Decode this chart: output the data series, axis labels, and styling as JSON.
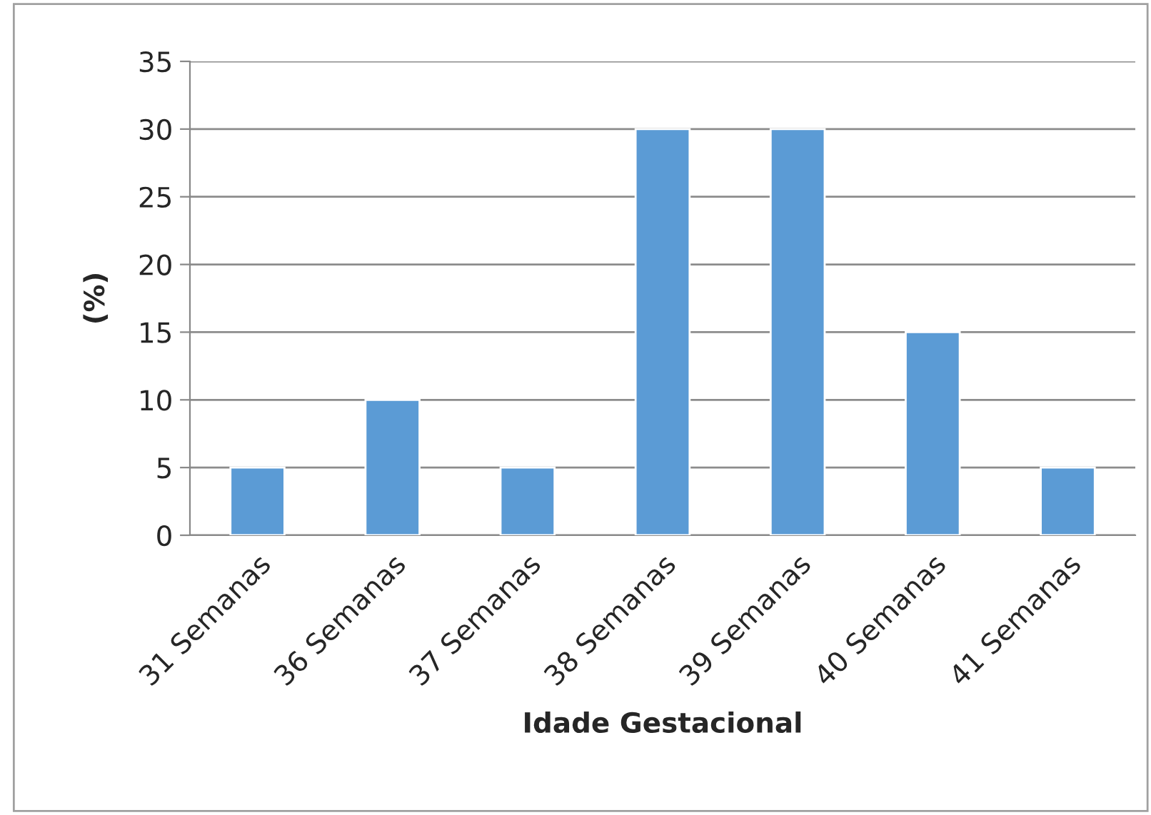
{
  "chart_data": {
    "type": "bar",
    "xlabel": "Idade Gestacional",
    "ylabel": "(%)",
    "categories": [
      "31 Semanas",
      "36 Semanas",
      "37 Semanas",
      "38 Semanas",
      "39 Semanas",
      "40 Semanas",
      "41 Semanas"
    ],
    "values": [
      5,
      10,
      5,
      30,
      30,
      15,
      5
    ],
    "color": "#5b9bd5",
    "ylim": [
      0,
      35
    ],
    "yticks": [
      0,
      5,
      10,
      15,
      20,
      25,
      30,
      35
    ],
    "grid": "y",
    "legend": false
  }
}
